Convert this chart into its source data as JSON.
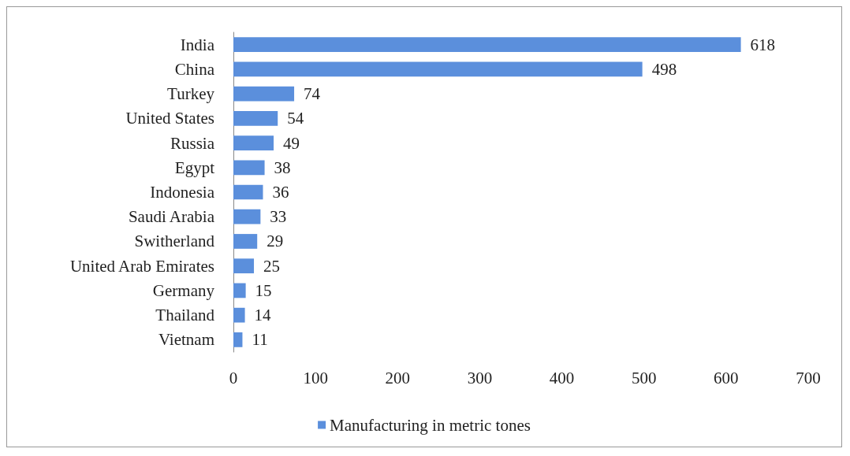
{
  "chart_data": {
    "type": "bar",
    "orientation": "horizontal",
    "categories": [
      "India",
      "China",
      "Turkey",
      "United States",
      "Russia",
      "Egypt",
      "Indonesia",
      "Saudi Arabia",
      "Switherland",
      "United Arab Emirates",
      "Germany",
      "Thailand",
      "Vietnam"
    ],
    "series": [
      {
        "name": "Manufacturing in metric tones",
        "color": "#5b8fdc",
        "values": [
          618,
          498,
          74,
          54,
          49,
          38,
          36,
          33,
          29,
          25,
          15,
          14,
          11
        ]
      }
    ],
    "xlim": [
      0,
      700
    ],
    "xticks": [
      0,
      100,
      200,
      300,
      400,
      500,
      600,
      700
    ],
    "data_labels": true,
    "grid": false,
    "legend": "bottom"
  }
}
